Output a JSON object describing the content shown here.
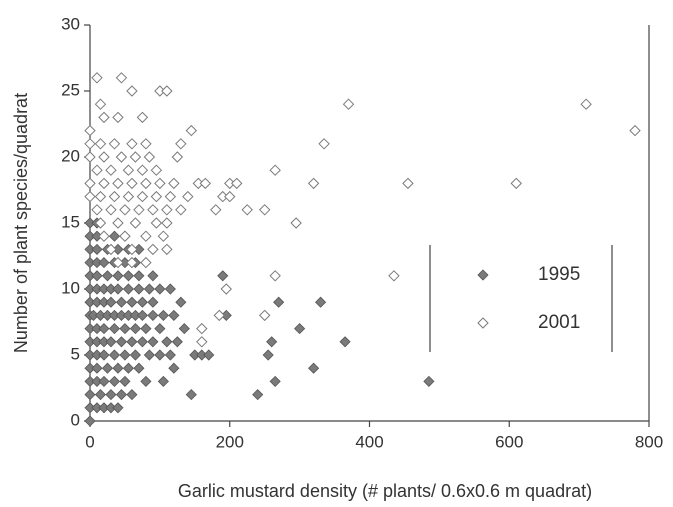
{
  "chart_data": {
    "type": "scatter",
    "x_label": "Garlic mustard density (# plants/ 0.6x0.6 m quadrat)",
    "y_label": "Number of plant species/quadrat",
    "xlim": [
      0,
      800
    ],
    "xticks": [
      0,
      200,
      400,
      600,
      800
    ],
    "ylim": [
      0,
      30
    ],
    "yticks": [
      0,
      5,
      10,
      15,
      20,
      25,
      30
    ],
    "series": [
      {
        "name": "1995",
        "color": "#7a7a7a",
        "filled": true,
        "x": [
          0,
          0,
          10,
          20,
          30,
          40,
          0,
          15,
          30,
          45,
          60,
          145,
          240,
          0,
          10,
          20,
          35,
          50,
          80,
          105,
          265,
          485,
          0,
          10,
          25,
          40,
          55,
          70,
          120,
          320,
          0,
          10,
          20,
          35,
          50,
          65,
          85,
          100,
          115,
          150,
          160,
          170,
          255,
          0,
          10,
          20,
          30,
          45,
          60,
          75,
          90,
          110,
          125,
          260,
          365,
          0,
          10,
          20,
          35,
          50,
          65,
          80,
          100,
          135,
          300,
          0,
          5,
          15,
          25,
          35,
          45,
          55,
          65,
          75,
          90,
          105,
          120,
          195,
          0,
          10,
          20,
          30,
          45,
          60,
          75,
          90,
          130,
          270,
          330,
          0,
          10,
          20,
          30,
          40,
          55,
          70,
          85,
          100,
          115,
          0,
          10,
          25,
          40,
          55,
          70,
          90,
          190,
          0,
          10,
          20,
          35,
          50,
          65,
          0,
          10,
          25,
          40,
          55,
          70,
          0,
          10,
          20,
          35,
          50,
          0,
          10
        ],
        "values": [
          0,
          1,
          1,
          1,
          1,
          1,
          2,
          2,
          2,
          2,
          2,
          2,
          2,
          3,
          3,
          3,
          3,
          3,
          3,
          3,
          3,
          3,
          4,
          4,
          4,
          4,
          4,
          4,
          4,
          4,
          5,
          5,
          5,
          5,
          5,
          5,
          5,
          5,
          5,
          5,
          5,
          5,
          5,
          6,
          6,
          6,
          6,
          6,
          6,
          6,
          6,
          6,
          6,
          6,
          6,
          7,
          7,
          7,
          7,
          7,
          7,
          7,
          7,
          7,
          7,
          8,
          8,
          8,
          8,
          8,
          8,
          8,
          8,
          8,
          8,
          8,
          8,
          8,
          9,
          9,
          9,
          9,
          9,
          9,
          9,
          9,
          9,
          9,
          9,
          10,
          10,
          10,
          10,
          10,
          10,
          10,
          10,
          10,
          10,
          11,
          11,
          11,
          11,
          11,
          11,
          11,
          11,
          12,
          12,
          12,
          12,
          12,
          12,
          13,
          13,
          13,
          13,
          13,
          13,
          14,
          14,
          14,
          14,
          14,
          15,
          15
        ]
      },
      {
        "name": "2001",
        "color": "#7a7a7a",
        "filled": false,
        "x": [
          160,
          160,
          185,
          250,
          195,
          265,
          435,
          40,
          60,
          80,
          30,
          60,
          90,
          110,
          20,
          50,
          80,
          105,
          15,
          40,
          65,
          95,
          110,
          295,
          10,
          30,
          50,
          70,
          90,
          110,
          130,
          180,
          225,
          250,
          0,
          15,
          35,
          55,
          75,
          95,
          115,
          140,
          190,
          200,
          0,
          20,
          40,
          60,
          80,
          100,
          120,
          155,
          165,
          200,
          210,
          320,
          455,
          610,
          10,
          30,
          55,
          75,
          95,
          265,
          0,
          20,
          45,
          65,
          85,
          125,
          0,
          15,
          35,
          60,
          80,
          130,
          335,
          0,
          145,
          780,
          20,
          40,
          75,
          15,
          370,
          710,
          60,
          100,
          110,
          10,
          45
        ],
        "values": [
          6,
          7,
          8,
          8,
          10,
          11,
          11,
          12,
          12,
          12,
          13,
          13,
          13,
          13,
          14,
          14,
          14,
          14,
          15,
          15,
          15,
          15,
          15,
          15,
          16,
          16,
          16,
          16,
          16,
          16,
          16,
          16,
          16,
          16,
          17,
          17,
          17,
          17,
          17,
          17,
          17,
          17,
          17,
          17,
          18,
          18,
          18,
          18,
          18,
          18,
          18,
          18,
          18,
          18,
          18,
          18,
          18,
          18,
          19,
          19,
          19,
          19,
          19,
          19,
          20,
          20,
          20,
          20,
          20,
          20,
          21,
          21,
          21,
          21,
          21,
          21,
          21,
          22,
          22,
          22,
          23,
          23,
          23,
          24,
          24,
          24,
          25,
          25,
          25,
          26,
          26
        ]
      }
    ]
  }
}
